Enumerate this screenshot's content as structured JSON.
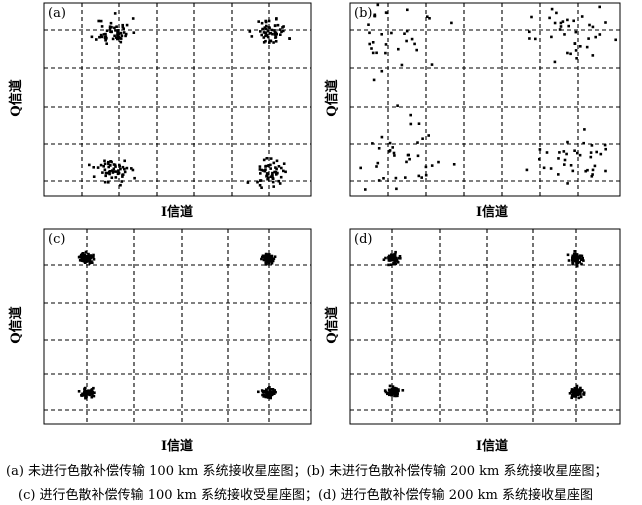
{
  "captions": [
    "(a)  未进行色散补偿传输 100 km 系统接收星座图；(b) 未进行色散补偿传输 200 km 系统接收星座图；",
    "(c)  进行色散补偿传输 100 km 系统接收受星座图；(d)  进行色散补偿传输 200 km 系统接收星座图"
  ],
  "chart_data": [
    {
      "type": "scatter",
      "panel_label": "(a)",
      "xlabel": "I信道",
      "ylabel": "Q信道",
      "xlim": [
        0,
        1
      ],
      "ylim": [
        0,
        1
      ],
      "grid": "dashed 8x5",
      "ideal_points": [
        [
          0.26,
          0.85
        ],
        [
          0.85,
          0.85
        ],
        [
          0.26,
          0.13
        ],
        [
          0.85,
          0.13
        ]
      ],
      "cluster_spread": 0.032,
      "points_per_cluster": 55,
      "seed": 11
    },
    {
      "type": "scatter",
      "panel_label": "(b)",
      "xlabel": "I信道",
      "ylabel": "Q信道",
      "xlim": [
        0,
        1
      ],
      "ylim": [
        0,
        1
      ],
      "grid": "dashed 8x5",
      "ideal_points": [
        [
          0.18,
          0.84
        ],
        [
          0.77,
          0.86
        ],
        [
          0.18,
          0.18
        ],
        [
          0.83,
          0.18
        ]
      ],
      "cluster_spread": 0.085,
      "points_per_cluster": 40,
      "seed": 23
    },
    {
      "type": "scatter",
      "panel_label": "(c)",
      "xlabel": "I信道",
      "ylabel": "Q信道",
      "xlim": [
        0,
        1
      ],
      "ylim": [
        0,
        1
      ],
      "grid": "dashed 7x5",
      "ideal_points": [
        [
          0.16,
          0.85
        ],
        [
          0.84,
          0.85
        ],
        [
          0.16,
          0.16
        ],
        [
          0.84,
          0.16
        ]
      ],
      "cluster_spread": 0.012,
      "points_per_cluster": 60,
      "seed": 37
    },
    {
      "type": "scatter",
      "panel_label": "(d)",
      "xlabel": "I信道",
      "ylabel": "Q信道",
      "xlim": [
        0,
        1
      ],
      "ylim": [
        0,
        1
      ],
      "grid": "dashed 7x5",
      "ideal_points": [
        [
          0.16,
          0.85
        ],
        [
          0.84,
          0.85
        ],
        [
          0.16,
          0.16
        ],
        [
          0.84,
          0.16
        ]
      ],
      "cluster_spread": 0.013,
      "points_per_cluster": 60,
      "seed": 53
    }
  ]
}
